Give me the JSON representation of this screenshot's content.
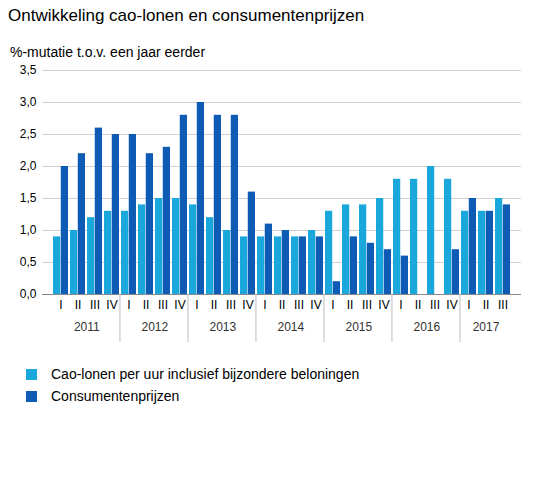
{
  "chart_data": {
    "type": "bar",
    "title": "Ontwikkeling cao-lonen en consumentenprijzen",
    "subtitle": "%-mutatie t.o.v. een jaar eerder",
    "categories": [
      "I",
      "II",
      "III",
      "IV",
      "I",
      "II",
      "III",
      "IV",
      "I",
      "II",
      "III",
      "IV",
      "I",
      "II",
      "III",
      "IV",
      "I",
      "II",
      "III",
      "IV",
      "I",
      "II",
      "III",
      "IV",
      "I",
      "II",
      "III"
    ],
    "category_years": [
      "2011",
      "2011",
      "2011",
      "2011",
      "2012",
      "2012",
      "2012",
      "2012",
      "2013",
      "2013",
      "2013",
      "2013",
      "2014",
      "2014",
      "2014",
      "2014",
      "2015",
      "2015",
      "2015",
      "2015",
      "2016",
      "2016",
      "2016",
      "2016",
      "2017",
      "2017",
      "2017"
    ],
    "series": [
      {
        "name": "Cao-lonen per uur inclusief bijzondere beloningen",
        "color": "#1aa7dc",
        "values": [
          0.9,
          1.0,
          1.2,
          1.3,
          1.3,
          1.4,
          1.5,
          1.5,
          1.4,
          1.2,
          1.0,
          0.9,
          0.9,
          0.9,
          0.9,
          1.0,
          1.3,
          1.4,
          1.4,
          1.5,
          1.8,
          1.8,
          2.0,
          1.8,
          1.3,
          1.3,
          1.5
        ]
      },
      {
        "name": "Consumentenprijzen",
        "color": "#0d5bb5",
        "values": [
          2.0,
          2.2,
          2.6,
          2.5,
          2.5,
          2.2,
          2.3,
          2.8,
          3.0,
          2.8,
          2.8,
          1.6,
          1.1,
          1.0,
          0.9,
          0.9,
          0.2,
          0.9,
          0.8,
          0.7,
          0.6,
          0.0,
          0.0,
          0.7,
          1.5,
          1.3,
          1.4
        ]
      }
    ],
    "ylim": [
      0,
      3.5
    ],
    "yticks": [
      {
        "value": 0,
        "label": "0,0"
      },
      {
        "value": 0.5,
        "label": "0,5"
      },
      {
        "value": 1,
        "label": "1,0"
      },
      {
        "value": 1.5,
        "label": "1,5"
      },
      {
        "value": 2,
        "label": "2,0"
      },
      {
        "value": 2.5,
        "label": "2,5"
      },
      {
        "value": 3,
        "label": "3,0"
      },
      {
        "value": 3.5,
        "label": "3,5"
      }
    ],
    "grid": true,
    "legend": "bottom"
  }
}
